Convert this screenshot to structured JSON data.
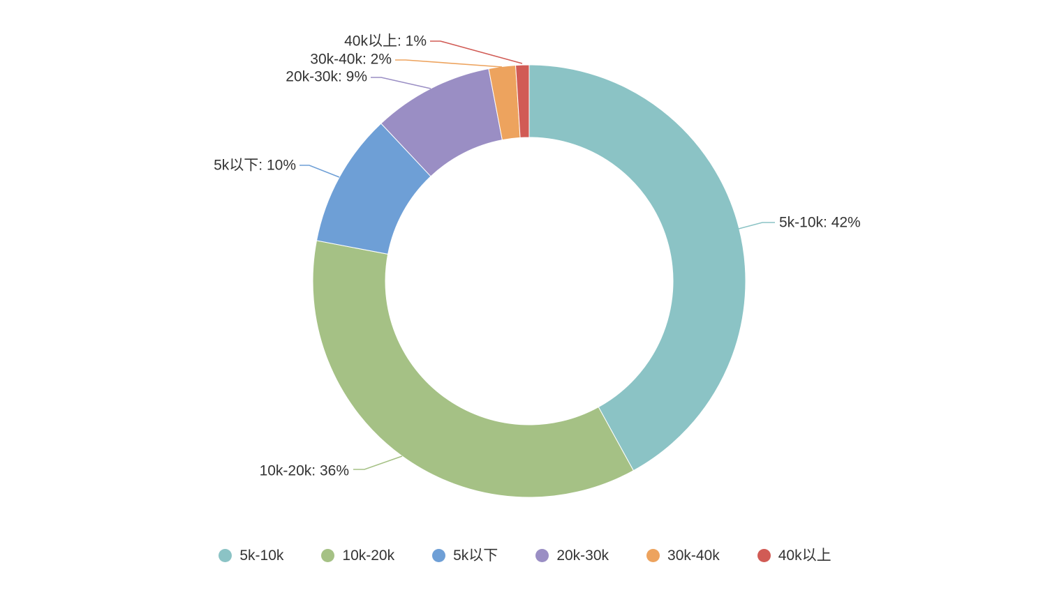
{
  "chart_data": {
    "type": "pie",
    "subtype": "donut",
    "title": "",
    "unit": "%",
    "start_angle_deg": 0,
    "direction": "clockwise",
    "legend_position": "bottom",
    "slices": [
      {
        "name": "5k-10k",
        "value": 42,
        "label": "5k-10k: 42%",
        "color": "#8BC3C5"
      },
      {
        "name": "10k-20k",
        "value": 36,
        "label": "10k-20k: 36%",
        "color": "#A5C185"
      },
      {
        "name": "5k以下",
        "value": 10,
        "label": "5k以下: 10%",
        "color": "#6E9FD6"
      },
      {
        "name": "20k-30k",
        "value": 9,
        "label": "20k-30k: 9%",
        "color": "#9A8EC4"
      },
      {
        "name": "30k-40k",
        "value": 2,
        "label": "30k-40k: 2%",
        "color": "#EDA35E"
      },
      {
        "name": "40k以上",
        "value": 1,
        "label": "40k以上: 1%",
        "color": "#D15B55"
      }
    ],
    "legend": [
      "5k-10k",
      "10k-20k",
      "5k以下",
      "20k-30k",
      "30k-40k",
      "40k以上"
    ]
  },
  "page": {
    "background": "#ffffff",
    "text_color": "#333333"
  }
}
